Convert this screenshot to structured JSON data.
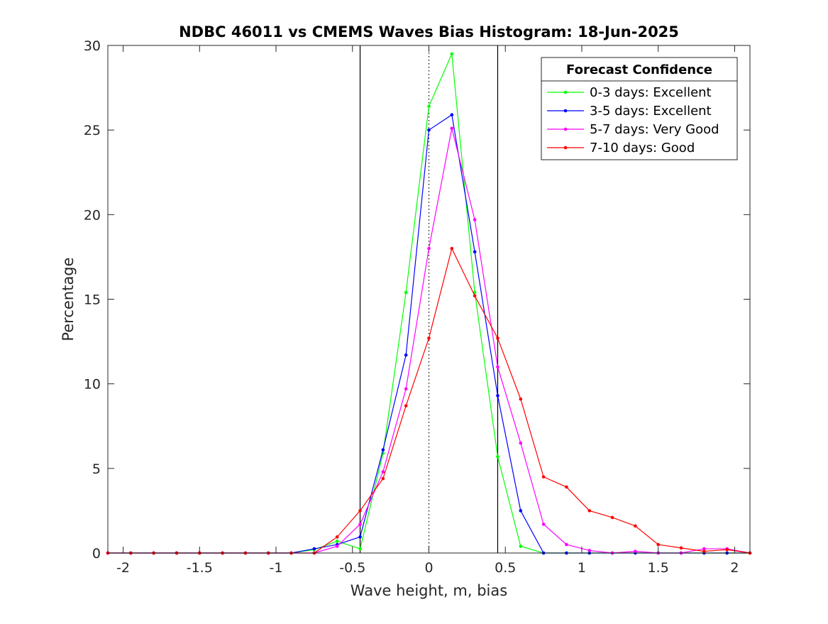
{
  "chart_data": {
    "type": "line",
    "title": "NDBC 46011 vs CMEMS Waves Bias Histogram: 18-Jun-2025",
    "xlabel": "Wave height, m, bias",
    "ylabel": "Percentage",
    "xlim": [
      -2.1,
      2.1
    ],
    "ylim": [
      0,
      30
    ],
    "xticks": [
      -2,
      -1.5,
      -1,
      -0.5,
      0,
      0.5,
      1,
      1.5,
      2
    ],
    "xtick_labels": [
      "-2",
      "-1.5",
      "-1",
      "-0.5",
      "0",
      "0.5",
      "1",
      "1.5",
      "2"
    ],
    "yticks": [
      0,
      5,
      10,
      15,
      20,
      25,
      30
    ],
    "ytick_labels": [
      "0",
      "5",
      "10",
      "15",
      "20",
      "25",
      "30"
    ],
    "grid": false,
    "reference_lines": [
      {
        "x": -0.45,
        "style": "solid",
        "color": "#000000"
      },
      {
        "x": 0,
        "style": "dotted",
        "color": "#000000"
      },
      {
        "x": 0.45,
        "style": "solid",
        "color": "#000000"
      }
    ],
    "legend": {
      "title": "Forecast Confidence",
      "placement": "top-right"
    },
    "x": [
      -2.1,
      -1.95,
      -1.8,
      -1.65,
      -1.5,
      -1.35,
      -1.2,
      -1.05,
      -0.9,
      -0.75,
      -0.6,
      -0.45,
      -0.3,
      -0.15,
      0,
      0.15,
      0.3,
      0.45,
      0.6,
      0.75,
      0.9,
      1.05,
      1.2,
      1.35,
      1.5,
      1.65,
      1.8,
      1.95,
      2.1
    ],
    "series": [
      {
        "name": "0-3 days: Excellent",
        "color": "#00ff00",
        "values": [
          0,
          0,
          0,
          0,
          0,
          0,
          0,
          0,
          0,
          0.2,
          0.7,
          0.25,
          5.9,
          15.4,
          26.4,
          29.5,
          15.4,
          5.7,
          0.4,
          0,
          0,
          0,
          0,
          0,
          0,
          0,
          0,
          0,
          0
        ]
      },
      {
        "name": "3-5 days: Excellent",
        "color": "#0000ff",
        "values": [
          0,
          0,
          0,
          0,
          0,
          0,
          0,
          0,
          0,
          0.25,
          0.5,
          0.95,
          6.1,
          11.7,
          25.0,
          25.9,
          17.8,
          9.3,
          2.5,
          0,
          0,
          0,
          0,
          0,
          0,
          0,
          0,
          0,
          0
        ]
      },
      {
        "name": "5-7 days: Very Good",
        "color": "#ff00ff",
        "values": [
          0,
          0,
          0,
          0,
          0,
          0,
          0,
          0,
          0,
          0,
          0.4,
          1.7,
          4.8,
          9.7,
          18.0,
          25.1,
          19.7,
          11.0,
          6.5,
          1.7,
          0.5,
          0.15,
          0,
          0.1,
          0,
          0,
          0.25,
          0.25,
          0
        ]
      },
      {
        "name": "7-10 days: Good",
        "color": "#ff0000",
        "values": [
          0,
          0,
          0,
          0,
          0,
          0,
          0,
          0,
          0,
          0,
          0.95,
          2.5,
          4.4,
          8.7,
          12.7,
          18.0,
          15.2,
          12.7,
          9.1,
          4.5,
          3.9,
          2.5,
          2.1,
          1.6,
          0.5,
          0.3,
          0.1,
          0.2,
          0
        ]
      }
    ]
  }
}
